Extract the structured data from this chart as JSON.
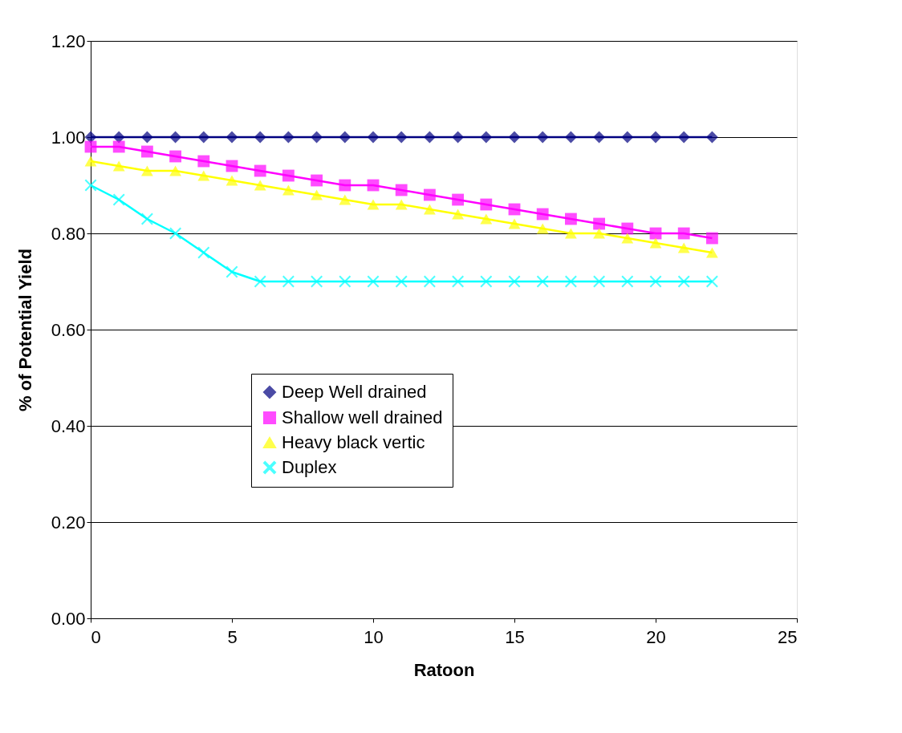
{
  "chart_data": {
    "type": "line",
    "xlabel": "Ratoon",
    "ylabel": "% of Potential Yield",
    "x": [
      0,
      1,
      2,
      3,
      4,
      5,
      6,
      7,
      8,
      9,
      10,
      11,
      12,
      13,
      14,
      15,
      16,
      17,
      18,
      19,
      20,
      21,
      22
    ],
    "series": [
      {
        "name": "Deep Well drained",
        "color": "#000080",
        "marker": "diamond",
        "values": [
          1.0,
          1.0,
          1.0,
          1.0,
          1.0,
          1.0,
          1.0,
          1.0,
          1.0,
          1.0,
          1.0,
          1.0,
          1.0,
          1.0,
          1.0,
          1.0,
          1.0,
          1.0,
          1.0,
          1.0,
          1.0,
          1.0,
          1.0
        ]
      },
      {
        "name": "Shallow well drained",
        "color": "#ff00ff",
        "marker": "square",
        "values": [
          0.98,
          0.98,
          0.97,
          0.96,
          0.95,
          0.94,
          0.93,
          0.92,
          0.91,
          0.9,
          0.9,
          0.89,
          0.88,
          0.87,
          0.86,
          0.85,
          0.84,
          0.83,
          0.82,
          0.81,
          0.8,
          0.8,
          0.79
        ]
      },
      {
        "name": "Heavy black vertic",
        "color": "#ffff00",
        "marker": "triangle",
        "values": [
          0.95,
          0.94,
          0.93,
          0.93,
          0.92,
          0.91,
          0.9,
          0.89,
          0.88,
          0.87,
          0.86,
          0.86,
          0.85,
          0.84,
          0.83,
          0.82,
          0.81,
          0.8,
          0.8,
          0.79,
          0.78,
          0.77,
          0.76
        ]
      },
      {
        "name": "Duplex",
        "color": "#00ffff",
        "marker": "cross",
        "values": [
          0.9,
          0.87,
          0.83,
          0.8,
          0.76,
          0.72,
          0.7,
          0.7,
          0.7,
          0.7,
          0.7,
          0.7,
          0.7,
          0.7,
          0.7,
          0.7,
          0.7,
          0.7,
          0.7,
          0.7,
          0.7,
          0.7,
          0.7
        ]
      }
    ],
    "xlim": [
      0,
      25
    ],
    "xticks": [
      0,
      5,
      10,
      15,
      20,
      25
    ],
    "ylim": [
      0,
      1.2
    ],
    "yticks": [
      {
        "value": 0,
        "label": "0.00"
      },
      {
        "value": 0.2,
        "label": "0.20"
      },
      {
        "value": 0.4,
        "label": "0.40"
      },
      {
        "value": 0.6,
        "label": "0.60"
      },
      {
        "value": 0.8,
        "label": "0.80"
      },
      {
        "value": 1.0,
        "label": "1.00"
      },
      {
        "value": 1.2,
        "label": "1.20"
      }
    ],
    "grid": "y",
    "legend": "left",
    "line_style": "solid"
  }
}
